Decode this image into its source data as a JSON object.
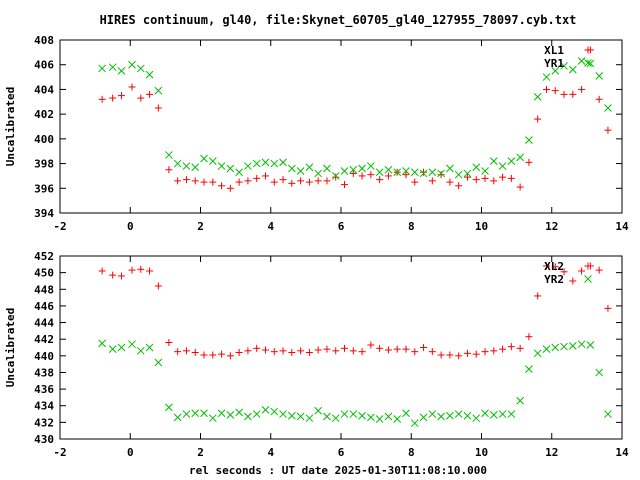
{
  "title": "HIRES continuum, gl40, file:Skynet_60705_gl40_127955_78097.cyb.txt",
  "xlabel": "rel seconds : UT date 2025-01-30T11:08:10.000",
  "colors": {
    "red": "#ff0000",
    "green": "#00c000",
    "axis": "#000000"
  },
  "chart_data": [
    {
      "type": "scatter",
      "ylabel": "Uncalibrated",
      "xlim": [
        -2,
        14
      ],
      "ylim": [
        394,
        408
      ],
      "xticks": [
        -2,
        0,
        2,
        4,
        6,
        8,
        10,
        12,
        14
      ],
      "yticks": [
        394,
        396,
        398,
        400,
        402,
        404,
        406,
        408
      ],
      "legend_position": "top-right",
      "series": [
        {
          "name": "XL1",
          "marker": "plus",
          "color": "#ff0000",
          "x": [
            -0.8,
            -0.5,
            -0.25,
            0.05,
            0.3,
            0.55,
            0.8,
            1.1,
            1.35,
            1.6,
            1.85,
            2.1,
            2.35,
            2.6,
            2.85,
            3.1,
            3.35,
            3.6,
            3.85,
            4.1,
            4.35,
            4.6,
            4.85,
            5.1,
            5.35,
            5.6,
            5.85,
            6.1,
            6.35,
            6.6,
            6.85,
            7.1,
            7.35,
            7.6,
            7.85,
            8.1,
            8.35,
            8.6,
            8.85,
            9.1,
            9.35,
            9.6,
            9.85,
            10.1,
            10.35,
            10.6,
            10.85,
            11.1,
            11.35,
            11.6,
            11.85,
            12.1,
            12.35,
            12.6,
            12.85,
            13.1,
            13.35,
            13.6
          ],
          "y": [
            403.2,
            403.3,
            403.5,
            404.2,
            403.3,
            403.6,
            402.5,
            397.5,
            396.6,
            396.7,
            396.6,
            396.5,
            396.5,
            396.2,
            396.0,
            396.5,
            396.6,
            396.8,
            397.0,
            396.5,
            396.7,
            396.4,
            396.6,
            396.5,
            396.6,
            396.6,
            396.9,
            396.3,
            397.2,
            397.0,
            397.1,
            396.7,
            397.0,
            397.3,
            397.1,
            396.5,
            397.3,
            396.6,
            397.1,
            396.5,
            396.2,
            396.9,
            396.7,
            396.8,
            396.6,
            396.9,
            396.8,
            396.1,
            398.1,
            401.6,
            404.0,
            403.9,
            403.6,
            403.6,
            404.0,
            407.2,
            403.2,
            400.7
          ]
        },
        {
          "name": "YR1",
          "marker": "cross",
          "color": "#00c000",
          "x": [
            -0.8,
            -0.5,
            -0.25,
            0.05,
            0.3,
            0.55,
            0.8,
            1.1,
            1.35,
            1.6,
            1.85,
            2.1,
            2.35,
            2.6,
            2.85,
            3.1,
            3.35,
            3.6,
            3.85,
            4.1,
            4.35,
            4.6,
            4.85,
            5.1,
            5.35,
            5.6,
            5.85,
            6.1,
            6.35,
            6.6,
            6.85,
            7.1,
            7.35,
            7.6,
            7.85,
            8.1,
            8.35,
            8.6,
            8.85,
            9.1,
            9.35,
            9.6,
            9.85,
            10.1,
            10.35,
            10.6,
            10.85,
            11.1,
            11.35,
            11.6,
            11.85,
            12.1,
            12.35,
            12.6,
            12.85,
            13.1,
            13.35,
            13.6
          ],
          "y": [
            405.7,
            405.8,
            405.5,
            406.0,
            405.7,
            405.2,
            403.9,
            398.7,
            398.0,
            397.8,
            397.7,
            398.4,
            398.2,
            397.8,
            397.6,
            397.3,
            397.8,
            398.0,
            398.1,
            398.0,
            398.1,
            397.6,
            397.4,
            397.7,
            397.2,
            397.6,
            397.0,
            397.4,
            397.5,
            397.6,
            397.8,
            397.3,
            397.5,
            397.3,
            397.4,
            397.3,
            397.2,
            397.3,
            397.2,
            397.6,
            397.1,
            397.2,
            397.7,
            397.4,
            398.2,
            397.8,
            398.2,
            398.5,
            399.9,
            403.4,
            405.0,
            405.5,
            405.9,
            405.6,
            406.3,
            406.1,
            405.1,
            402.5
          ]
        }
      ]
    },
    {
      "type": "scatter",
      "ylabel": "Uncalibrated",
      "xlim": [
        -2,
        14
      ],
      "ylim": [
        430,
        452
      ],
      "xticks": [
        -2,
        0,
        2,
        4,
        6,
        8,
        10,
        12,
        14
      ],
      "yticks": [
        430,
        432,
        434,
        436,
        438,
        440,
        442,
        444,
        446,
        448,
        450,
        452
      ],
      "legend_position": "top-right",
      "series": [
        {
          "name": "XL2",
          "marker": "plus",
          "color": "#ff0000",
          "x": [
            -0.8,
            -0.5,
            -0.25,
            0.05,
            0.3,
            0.55,
            0.8,
            1.1,
            1.35,
            1.6,
            1.85,
            2.1,
            2.35,
            2.6,
            2.85,
            3.1,
            3.35,
            3.6,
            3.85,
            4.1,
            4.35,
            4.6,
            4.85,
            5.1,
            5.35,
            5.6,
            5.85,
            6.1,
            6.35,
            6.6,
            6.85,
            7.1,
            7.35,
            7.6,
            7.85,
            8.1,
            8.35,
            8.6,
            8.85,
            9.1,
            9.35,
            9.6,
            9.85,
            10.1,
            10.35,
            10.6,
            10.85,
            11.1,
            11.35,
            11.6,
            11.85,
            12.1,
            12.35,
            12.6,
            12.85,
            13.1,
            13.35,
            13.6
          ],
          "y": [
            450.2,
            449.7,
            449.6,
            450.3,
            450.4,
            450.2,
            448.4,
            441.6,
            440.5,
            440.6,
            440.4,
            440.1,
            440.1,
            440.2,
            440.0,
            440.4,
            440.6,
            440.9,
            440.7,
            440.5,
            440.6,
            440.4,
            440.6,
            440.4,
            440.7,
            440.8,
            440.6,
            440.9,
            440.6,
            440.5,
            441.3,
            440.9,
            440.7,
            440.8,
            440.8,
            440.5,
            441.0,
            440.5,
            440.1,
            440.1,
            440.0,
            440.3,
            440.2,
            440.5,
            440.6,
            440.8,
            441.1,
            440.9,
            442.3,
            447.2,
            450.8,
            450.7,
            450.1,
            449.0,
            450.2,
            450.8,
            450.3,
            445.7
          ]
        },
        {
          "name": "YR2",
          "marker": "cross",
          "color": "#00c000",
          "x": [
            -0.8,
            -0.5,
            -0.25,
            0.05,
            0.3,
            0.55,
            0.8,
            1.1,
            1.35,
            1.6,
            1.85,
            2.1,
            2.35,
            2.6,
            2.85,
            3.1,
            3.35,
            3.6,
            3.85,
            4.1,
            4.35,
            4.6,
            4.85,
            5.1,
            5.35,
            5.6,
            5.85,
            6.1,
            6.35,
            6.6,
            6.85,
            7.1,
            7.35,
            7.6,
            7.85,
            8.1,
            8.35,
            8.6,
            8.85,
            9.1,
            9.35,
            9.6,
            9.85,
            10.1,
            10.35,
            10.6,
            10.85,
            11.1,
            11.35,
            11.6,
            11.85,
            12.1,
            12.35,
            12.6,
            12.85,
            13.1,
            13.35,
            13.6
          ],
          "y": [
            441.5,
            440.8,
            441.0,
            441.4,
            440.6,
            441.0,
            439.2,
            433.8,
            432.6,
            433.0,
            433.1,
            433.1,
            432.5,
            433.1,
            432.9,
            433.2,
            432.7,
            433.0,
            433.5,
            433.3,
            433.0,
            432.8,
            432.7,
            432.5,
            433.4,
            432.7,
            432.5,
            433.0,
            433.0,
            432.8,
            432.6,
            432.4,
            432.7,
            432.4,
            433.1,
            431.9,
            432.6,
            433.0,
            432.7,
            432.8,
            433.0,
            432.8,
            432.5,
            433.1,
            432.9,
            433.0,
            433.0,
            434.6,
            438.4,
            440.3,
            440.8,
            441.0,
            441.1,
            441.2,
            441.4,
            441.3,
            438.0,
            433.0
          ]
        }
      ]
    }
  ]
}
